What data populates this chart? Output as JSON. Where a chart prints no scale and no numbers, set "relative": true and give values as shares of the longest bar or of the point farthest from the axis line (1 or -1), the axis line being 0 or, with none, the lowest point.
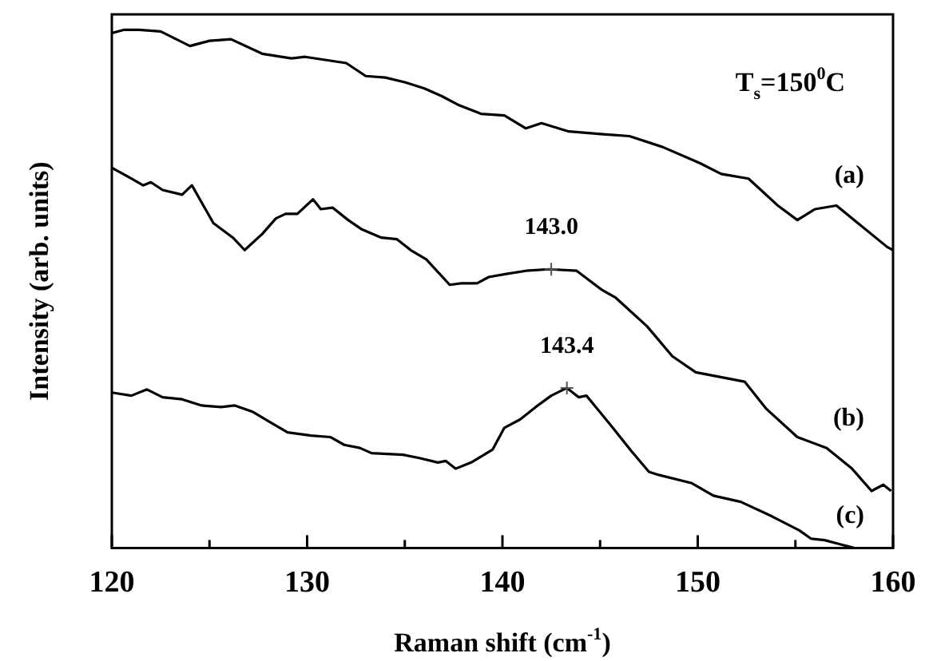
{
  "chart_data": {
    "type": "line",
    "relative": true,
    "xlabel": "Raman shift (cm$^{-1}$)",
    "ylabel": "Intensity (arb. units)",
    "xlim": [
      120,
      160
    ],
    "xticks": [
      120,
      {
        "value": 125,
        "label": null
      },
      130,
      {
        "value": 135,
        "label": null
      },
      140,
      {
        "value": 145,
        "label": null
      },
      150,
      {
        "value": 155,
        "label": null
      },
      160
    ],
    "legend": false,
    "grid": false,
    "marker": "none",
    "line_style": "solid",
    "annotations": [
      "T$_{s}$=150$^{0}$C",
      {
        "text": "143.0",
        "x": 142.5,
        "y": 0.538
      },
      {
        "text": "143.4",
        "x": 143.3,
        "y": 0.309
      }
    ],
    "series": [
      {
        "name": "(a)",
        "color": "#000000",
        "x": [
          120.0,
          120.6,
          121.4,
          122.5,
          124.0,
          125.0,
          126.1,
          127.7,
          129.2,
          129.9,
          132.0,
          133.0,
          134.0,
          135.0,
          136.0,
          136.9,
          137.7,
          138.9,
          140.1,
          141.2,
          142.0,
          143.4,
          145.4,
          146.5,
          148.2,
          150.1,
          151.2,
          152.6,
          154.1,
          155.1,
          156.0,
          157.1,
          158.2,
          159.7,
          160.0
        ],
        "values": [
          0.994,
          1,
          1,
          0.997,
          0.969,
          0.979,
          0.982,
          0.954,
          0.945,
          0.948,
          0.936,
          0.911,
          0.908,
          0.899,
          0.887,
          0.872,
          0.856,
          0.838,
          0.835,
          0.81,
          0.82,
          0.804,
          0.798,
          0.795,
          0.774,
          0.743,
          0.722,
          0.713,
          0.661,
          0.633,
          0.654,
          0.661,
          0.627,
          0.581,
          0.575
        ]
      },
      {
        "name": "(b)",
        "color": "#000000",
        "x": [
          120.0,
          121.0,
          121.6,
          122.0,
          122.6,
          123.6,
          124.1,
          125.2,
          126.2,
          126.8,
          127.7,
          128.4,
          128.9,
          129.5,
          130.3,
          130.7,
          131.3,
          132.1,
          132.8,
          133.8,
          134.6,
          135.3,
          136.1,
          137.3,
          137.9,
          138.7,
          139.3,
          140.2,
          141.2,
          142.4,
          143.8,
          145.1,
          145.8,
          147.4,
          148.7,
          149.9,
          152.4,
          153.5,
          155.1,
          156.6,
          157.9,
          158.9,
          159.5,
          159.9
        ],
        "values": [
          0.734,
          0.713,
          0.7,
          0.706,
          0.691,
          0.682,
          0.7,
          0.627,
          0.599,
          0.575,
          0.606,
          0.636,
          0.645,
          0.645,
          0.673,
          0.654,
          0.657,
          0.633,
          0.615,
          0.599,
          0.596,
          0.575,
          0.557,
          0.508,
          0.511,
          0.511,
          0.523,
          0.529,
          0.535,
          0.538,
          0.535,
          0.498,
          0.483,
          0.428,
          0.37,
          0.339,
          0.321,
          0.269,
          0.214,
          0.193,
          0.153,
          0.11,
          0.122,
          0.11
        ]
      },
      {
        "name": "(c)",
        "color": "#000000",
        "x": [
          120.0,
          121.0,
          121.8,
          122.6,
          123.6,
          124.6,
          125.6,
          126.3,
          127.2,
          128.0,
          129.0,
          130.2,
          131.2,
          131.9,
          132.7,
          133.3,
          134.9,
          135.7,
          136.7,
          137.1,
          137.6,
          138.4,
          139.5,
          140.1,
          140.9,
          141.7,
          142.5,
          143.3,
          143.9,
          144.3,
          145.5,
          146.6,
          147.5,
          148.0,
          149.7,
          150.8,
          152.2,
          153.8,
          155.2,
          155.8,
          156.5,
          157.4,
          158.0
        ],
        "values": [
          0.3,
          0.294,
          0.306,
          0.291,
          0.287,
          0.275,
          0.272,
          0.275,
          0.263,
          0.245,
          0.223,
          0.217,
          0.214,
          0.199,
          0.193,
          0.183,
          0.18,
          0.174,
          0.165,
          0.168,
          0.153,
          0.165,
          0.19,
          0.232,
          0.248,
          0.272,
          0.294,
          0.309,
          0.291,
          0.294,
          0.239,
          0.187,
          0.147,
          0.141,
          0.125,
          0.101,
          0.089,
          0.061,
          0.034,
          0.018,
          0.015,
          0.006,
          0
        ]
      }
    ]
  }
}
